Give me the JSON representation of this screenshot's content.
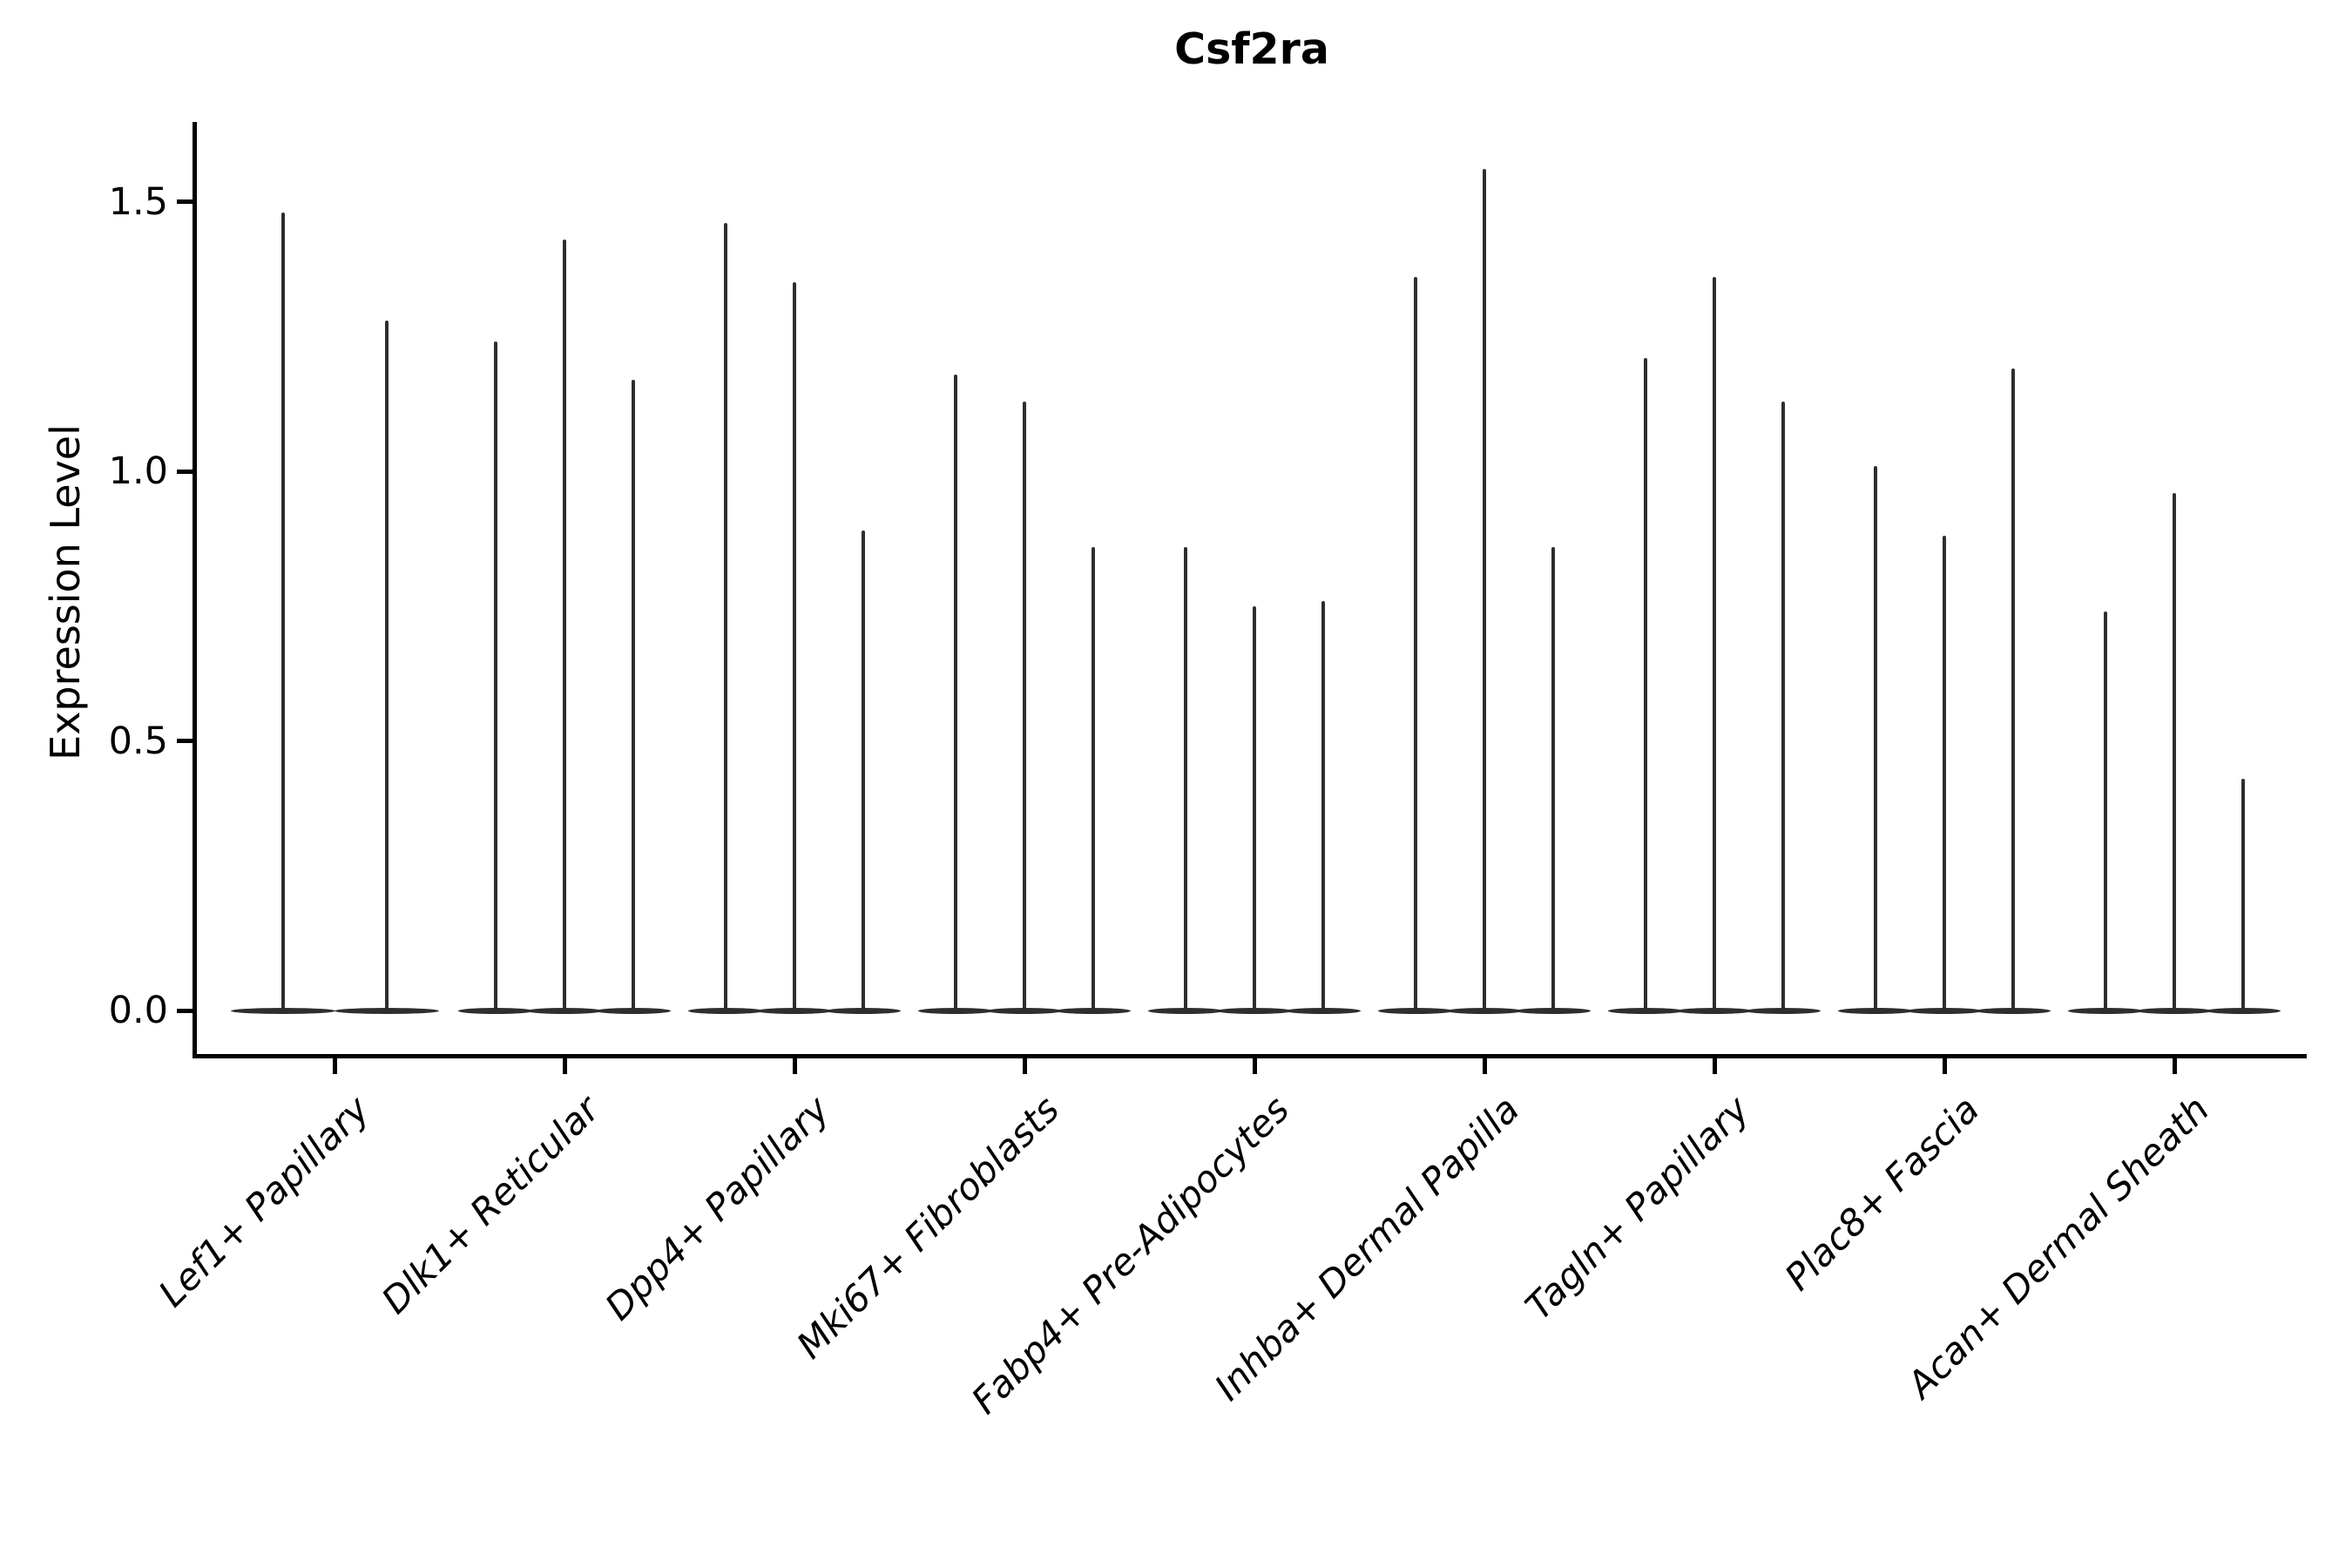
{
  "chart_data": {
    "type": "violin",
    "title": "Csf2ra",
    "xlabel": "",
    "ylabel": "Expression Level",
    "ytick_labels": [
      "0.0",
      "0.5",
      "1.0",
      "1.5"
    ],
    "ytick_values": [
      0.0,
      0.5,
      1.0,
      1.5
    ],
    "ylim": [
      -0.08,
      1.65
    ],
    "grid": false,
    "legend": null,
    "spines": [
      "left",
      "bottom"
    ],
    "note": "Single-cell violin plot; each category shows narrow needle-like violins: a flat dense mass at 0 expression with a thin spike up to the maximum expression value.",
    "categories": [
      "Lef1+ Papillary",
      "Dlk1+ Reticular",
      "Dpp4+ Papillary",
      "Mki67+ Fibroblasts",
      "Fabp4+ Pre-Adipocytes",
      "Inhba+ Dermal Papilla",
      "Tagln+ Papillary",
      "Plac8+ Fascia",
      "Acan+ Dermal Sheath"
    ],
    "groups": [
      {
        "category": "Lef1+ Papillary",
        "spike_maxima": [
          1.48,
          1.28
        ]
      },
      {
        "category": "Dlk1+ Reticular",
        "spike_maxima": [
          1.24,
          1.43,
          1.17
        ]
      },
      {
        "category": "Dpp4+ Papillary",
        "spike_maxima": [
          1.46,
          1.35,
          0.89
        ]
      },
      {
        "category": "Mki67+ Fibroblasts",
        "spike_maxima": [
          1.18,
          1.13,
          0.86
        ]
      },
      {
        "category": "Fabp4+ Pre-Adipocytes",
        "spike_maxima": [
          0.86,
          0.75,
          0.76
        ]
      },
      {
        "category": "Inhba+ Dermal Papilla",
        "spike_maxima": [
          1.36,
          1.56,
          0.86
        ]
      },
      {
        "category": "Tagln+ Papillary",
        "spike_maxima": [
          1.21,
          1.36,
          1.13
        ]
      },
      {
        "category": "Plac8+ Fascia",
        "spike_maxima": [
          1.01,
          0.88,
          1.19
        ]
      },
      {
        "category": "Acan+ Dermal Sheath",
        "spike_maxima": [
          0.74,
          0.96,
          0.43
        ]
      }
    ],
    "colors": {
      "violin_line": "#2e2e2e",
      "axis": "#000000",
      "text": "#000000",
      "background": "#ffffff"
    }
  }
}
